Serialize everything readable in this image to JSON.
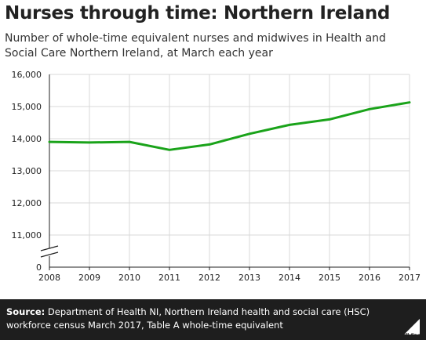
{
  "title": "Nurses through time: Northern Ireland",
  "subtitle": "Number of whole-time equivalent nurses and midwives in Health and Social Care Northern Ireland, at March each year",
  "footer": {
    "source_label": "Source:",
    "source_text": "Department of Health NI, Northern Ireland health and social care (HSC) workforce census March 2017, Table A whole-time equivalent",
    "logo_text": "Full Fact"
  },
  "colors": {
    "line": "#1aa31a",
    "grid": "#d9d9d9",
    "axis": "#222222",
    "footer_bg": "#1e1e1e"
  },
  "chart_data": {
    "type": "line",
    "x": [
      2008,
      2009,
      2010,
      2011,
      2012,
      2013,
      2014,
      2015,
      2016,
      2017
    ],
    "series": [
      {
        "values": [
          13900,
          13880,
          13900,
          13650,
          13820,
          14150,
          14430,
          14600,
          14920,
          15130
        ]
      }
    ],
    "y_ticks": [
      "16,000",
      "15,000",
      "14,000",
      "13,000",
      "12,000",
      "11,000",
      "0"
    ],
    "y_tick_values": [
      16000,
      15000,
      14000,
      13000,
      12000,
      11000,
      0
    ],
    "ylim_broken": [
      10500,
      16000
    ],
    "axis_break": true,
    "grid": true,
    "xlabel": "",
    "ylabel": ""
  }
}
